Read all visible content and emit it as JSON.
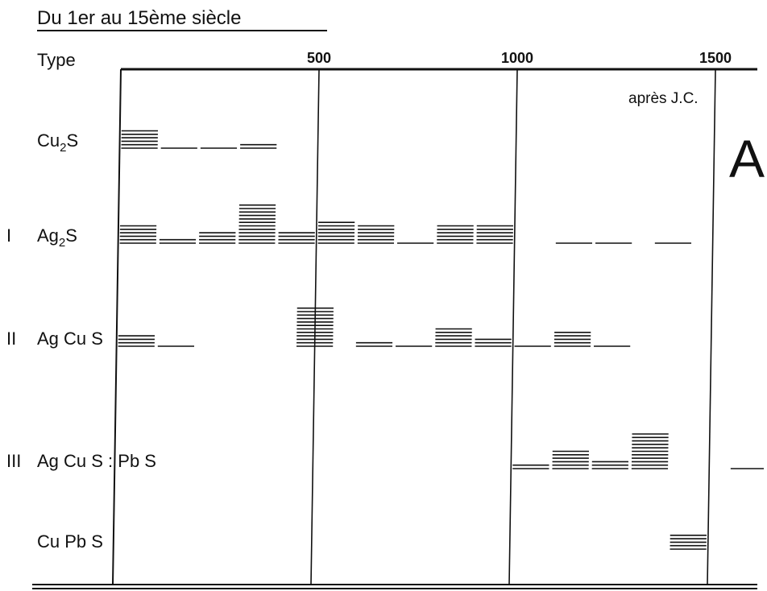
{
  "chart_data": {
    "type": "bar",
    "title": "Du 1er au 15ème siècle",
    "row_header": "Type",
    "x_ticks": [
      "500",
      "1000",
      "1500"
    ],
    "x_unit_label": "après J.C.",
    "panel_letter": "A",
    "xlim": [
      0,
      1600
    ],
    "bin_width": 100,
    "rows": [
      {
        "label_main": "Cu",
        "label_sub": "2",
        "label_tail": "S",
        "roman": "",
        "bins": [
          {
            "x": 50,
            "n": 6
          },
          {
            "x": 150,
            "n": 1
          },
          {
            "x": 250,
            "n": 1
          },
          {
            "x": 350,
            "n": 2
          }
        ]
      },
      {
        "label_main": "Ag",
        "label_sub": "2",
        "label_tail": "S",
        "roman": "I",
        "bins": [
          {
            "x": 50,
            "n": 6
          },
          {
            "x": 150,
            "n": 2
          },
          {
            "x": 250,
            "n": 4
          },
          {
            "x": 350,
            "n": 12
          },
          {
            "x": 450,
            "n": 4
          },
          {
            "x": 550,
            "n": 7
          },
          {
            "x": 650,
            "n": 6
          },
          {
            "x": 750,
            "n": 1
          },
          {
            "x": 850,
            "n": 6
          },
          {
            "x": 950,
            "n": 6
          },
          {
            "x": 1150,
            "n": 1
          },
          {
            "x": 1250,
            "n": 1
          },
          {
            "x": 1400,
            "n": 1
          }
        ]
      },
      {
        "label_main": "Ag Cu S",
        "label_sub": "",
        "label_tail": "",
        "roman": "II",
        "bins": [
          {
            "x": 50,
            "n": 4
          },
          {
            "x": 150,
            "n": 1
          },
          {
            "x": 500,
            "n": 12
          },
          {
            "x": 650,
            "n": 2
          },
          {
            "x": 750,
            "n": 1
          },
          {
            "x": 850,
            "n": 6
          },
          {
            "x": 950,
            "n": 3
          },
          {
            "x": 1050,
            "n": 1
          },
          {
            "x": 1150,
            "n": 5
          },
          {
            "x": 1250,
            "n": 1
          }
        ]
      },
      {
        "label_main": "Ag Cu S",
        "label_sub": "",
        "label_tail": ": Pb S",
        "roman": "III",
        "bins": [
          {
            "x": 1050,
            "n": 2
          },
          {
            "x": 1150,
            "n": 6
          },
          {
            "x": 1250,
            "n": 3
          },
          {
            "x": 1350,
            "n": 11
          },
          {
            "x": 1600,
            "n": 1
          }
        ]
      },
      {
        "label_main": "Cu Pb S",
        "label_sub": "",
        "label_tail": "",
        "roman": "",
        "bins": [
          {
            "x": 1450,
            "n": 5
          }
        ]
      }
    ]
  }
}
